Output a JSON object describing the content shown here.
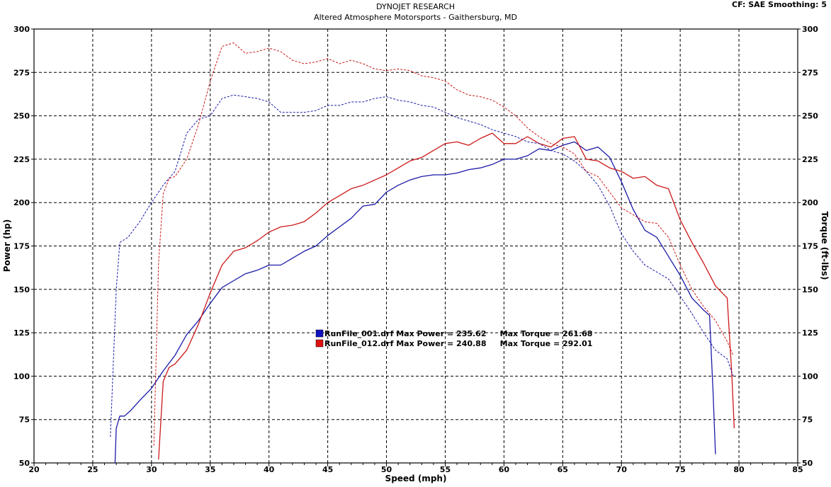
{
  "chart_data": {
    "type": "line",
    "title": "DYNOJET RESEARCH",
    "subtitle": "Altered Atmosphere Motorsports - Gaithersburg, MD",
    "corner_info": "CF: SAE  Smoothing: 5",
    "xlabel": "Speed (mph)",
    "ylabel_left": "Power (hp)",
    "ylabel_right": "Torque (ft-lbs)",
    "xlim": [
      20,
      85
    ],
    "ylim": [
      50,
      300
    ],
    "x_ticks": [
      "20",
      "25",
      "30",
      "35",
      "40",
      "45",
      "50",
      "55",
      "60",
      "65",
      "70",
      "75",
      "80",
      "85"
    ],
    "y_ticks": [
      "300",
      "275",
      "250",
      "225",
      "200",
      "175",
      "150",
      "125",
      "100",
      "75",
      "50"
    ],
    "grid": true,
    "legend_position": "center",
    "legend": [
      {
        "color": "#1010c0",
        "text": "RunFile_001.drf Max Power = 235.62     Max Torque = 261.68"
      },
      {
        "color": "#e01010",
        "text": "RunFile_012.drf Max Power = 240.88     Max Torque = 292.01"
      }
    ],
    "series": [
      {
        "name": "RunFile_001.drf",
        "measure": "power",
        "color": "#1a1aa8",
        "dashed": false,
        "points": [
          [
            26.9,
            50
          ],
          [
            27.0,
            70
          ],
          [
            27.3,
            77
          ],
          [
            27.7,
            77
          ],
          [
            28.2,
            80
          ],
          [
            29,
            86
          ],
          [
            30,
            93
          ],
          [
            31,
            103
          ],
          [
            32,
            112
          ],
          [
            33,
            124
          ],
          [
            34,
            132
          ],
          [
            35,
            142
          ],
          [
            36,
            151
          ],
          [
            37,
            155
          ],
          [
            38,
            159
          ],
          [
            39,
            161
          ],
          [
            40,
            164
          ],
          [
            41,
            164
          ],
          [
            42,
            168
          ],
          [
            43,
            172
          ],
          [
            44,
            175
          ],
          [
            45,
            181
          ],
          [
            46,
            186
          ],
          [
            47,
            191
          ],
          [
            48,
            198
          ],
          [
            49,
            199
          ],
          [
            50,
            206
          ],
          [
            51,
            210
          ],
          [
            52,
            213
          ],
          [
            53,
            215
          ],
          [
            54,
            216
          ],
          [
            55,
            216
          ],
          [
            56,
            217
          ],
          [
            57,
            219
          ],
          [
            58,
            220
          ],
          [
            59,
            222
          ],
          [
            60,
            225
          ],
          [
            61,
            225
          ],
          [
            62,
            227
          ],
          [
            63,
            231
          ],
          [
            64,
            230
          ],
          [
            65,
            233
          ],
          [
            66,
            235
          ],
          [
            67,
            230
          ],
          [
            68,
            232
          ],
          [
            69,
            226
          ],
          [
            70,
            212
          ],
          [
            71,
            196
          ],
          [
            72,
            184
          ],
          [
            73,
            180
          ],
          [
            74,
            169
          ],
          [
            75,
            158
          ],
          [
            76,
            145
          ],
          [
            77,
            138
          ],
          [
            77.5,
            135
          ],
          [
            77.8,
            90
          ],
          [
            78,
            55
          ]
        ]
      },
      {
        "name": "RunFile_012.drf",
        "measure": "power",
        "color": "#cc1818",
        "dashed": false,
        "points": [
          [
            30.6,
            52
          ],
          [
            31,
            97
          ],
          [
            31.5,
            105
          ],
          [
            32,
            107
          ],
          [
            33,
            115
          ],
          [
            34,
            130
          ],
          [
            35,
            148
          ],
          [
            36,
            164
          ],
          [
            37,
            172
          ],
          [
            38,
            174
          ],
          [
            39,
            178
          ],
          [
            40,
            183
          ],
          [
            41,
            186
          ],
          [
            42,
            187
          ],
          [
            43,
            189
          ],
          [
            44,
            194
          ],
          [
            45,
            200
          ],
          [
            46,
            204
          ],
          [
            47,
            208
          ],
          [
            48,
            210
          ],
          [
            49,
            213
          ],
          [
            50,
            216
          ],
          [
            51,
            220
          ],
          [
            52,
            224
          ],
          [
            53,
            226
          ],
          [
            54,
            230
          ],
          [
            55,
            234
          ],
          [
            56,
            235
          ],
          [
            57,
            233
          ],
          [
            58,
            237
          ],
          [
            59,
            240
          ],
          [
            60,
            234
          ],
          [
            61,
            234
          ],
          [
            62,
            238
          ],
          [
            63,
            234
          ],
          [
            64,
            232
          ],
          [
            65,
            237
          ],
          [
            66,
            238
          ],
          [
            67,
            225
          ],
          [
            68,
            224
          ],
          [
            69,
            220
          ],
          [
            70,
            218
          ],
          [
            71,
            214
          ],
          [
            72,
            215
          ],
          [
            73,
            210
          ],
          [
            74,
            208
          ],
          [
            75,
            190
          ],
          [
            76,
            177
          ],
          [
            77,
            165
          ],
          [
            78,
            152
          ],
          [
            79,
            145
          ],
          [
            79.4,
            100
          ],
          [
            79.6,
            70
          ]
        ]
      },
      {
        "name": "RunFile_001.drf",
        "measure": "torque",
        "color": "#1a1aa8",
        "dashed": true,
        "points": [
          [
            26.5,
            65
          ],
          [
            27,
            150
          ],
          [
            27.3,
            177
          ],
          [
            28,
            180
          ],
          [
            29,
            189
          ],
          [
            30,
            200
          ],
          [
            31,
            210
          ],
          [
            32,
            218
          ],
          [
            33,
            240
          ],
          [
            34,
            248
          ],
          [
            35,
            250
          ],
          [
            36,
            260
          ],
          [
            37,
            262
          ],
          [
            38,
            261
          ],
          [
            39,
            260
          ],
          [
            40,
            258
          ],
          [
            41,
            252
          ],
          [
            42,
            252
          ],
          [
            43,
            252
          ],
          [
            44,
            253
          ],
          [
            45,
            256
          ],
          [
            46,
            256
          ],
          [
            47,
            258
          ],
          [
            48,
            258
          ],
          [
            49,
            260
          ],
          [
            50,
            261
          ],
          [
            51,
            259
          ],
          [
            52,
            258
          ],
          [
            53,
            256
          ],
          [
            54,
            255
          ],
          [
            55,
            252
          ],
          [
            56,
            249
          ],
          [
            57,
            247
          ],
          [
            58,
            245
          ],
          [
            59,
            242
          ],
          [
            60,
            240
          ],
          [
            61,
            238
          ],
          [
            62,
            235
          ],
          [
            63,
            234
          ],
          [
            64,
            230
          ],
          [
            65,
            228
          ],
          [
            66,
            224
          ],
          [
            67,
            218
          ],
          [
            68,
            210
          ],
          [
            69,
            198
          ],
          [
            70,
            182
          ],
          [
            71,
            172
          ],
          [
            72,
            164
          ],
          [
            73,
            160
          ],
          [
            74,
            156
          ],
          [
            75,
            146
          ],
          [
            76,
            136
          ],
          [
            77,
            125
          ],
          [
            78,
            115
          ],
          [
            79,
            110
          ],
          [
            79.5,
            100
          ]
        ]
      },
      {
        "name": "RunFile_012.drf",
        "measure": "torque",
        "color": "#cc1818",
        "dashed": true,
        "points": [
          [
            30.2,
            60
          ],
          [
            30.6,
            165
          ],
          [
            31,
            205
          ],
          [
            31.5,
            214
          ],
          [
            32,
            215
          ],
          [
            33,
            225
          ],
          [
            34,
            245
          ],
          [
            35,
            270
          ],
          [
            36,
            290
          ],
          [
            37,
            292
          ],
          [
            38,
            286
          ],
          [
            39,
            287
          ],
          [
            40,
            289
          ],
          [
            41,
            287
          ],
          [
            42,
            282
          ],
          [
            43,
            280
          ],
          [
            44,
            281
          ],
          [
            45,
            283
          ],
          [
            46,
            280
          ],
          [
            47,
            282
          ],
          [
            48,
            280
          ],
          [
            49,
            277
          ],
          [
            50,
            276
          ],
          [
            51,
            277
          ],
          [
            52,
            276
          ],
          [
            53,
            273
          ],
          [
            54,
            272
          ],
          [
            55,
            270
          ],
          [
            56,
            265
          ],
          [
            57,
            262
          ],
          [
            58,
            261
          ],
          [
            59,
            259
          ],
          [
            60,
            255
          ],
          [
            61,
            250
          ],
          [
            62,
            243
          ],
          [
            63,
            238
          ],
          [
            64,
            234
          ],
          [
            65,
            232
          ],
          [
            66,
            228
          ],
          [
            67,
            218
          ],
          [
            68,
            215
          ],
          [
            69,
            206
          ],
          [
            70,
            197
          ],
          [
            71,
            193
          ],
          [
            72,
            189
          ],
          [
            73,
            188
          ],
          [
            74,
            180
          ],
          [
            75,
            164
          ],
          [
            76,
            150
          ],
          [
            77,
            140
          ],
          [
            78,
            132
          ],
          [
            79,
            120
          ],
          [
            79.5,
            112
          ]
        ]
      }
    ]
  }
}
